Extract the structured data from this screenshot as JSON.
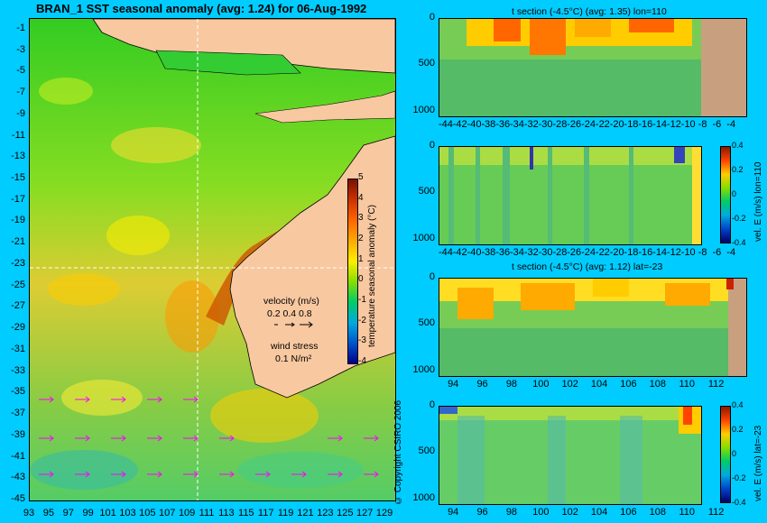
{
  "main_title": "BRAN_1  SST seasonal anomaly  (avg: 1.24) for 06-Aug-1992",
  "copyright": "© Copyright CSIRO 2006",
  "colors": {
    "background": "#00ccff",
    "land": "#f8c8a0",
    "arrow": "#ff00ff"
  },
  "map": {
    "velocity_label": "velocity (m/s)",
    "velocity_scale": "0.2 0.4 0.8",
    "wind_label": "wind stress",
    "wind_scale": "0.1 N/m²",
    "colorbar_label": "temperature seasonal anomaly (°C)"
  },
  "panels": {
    "t1_title": "t section (-4.5°C) (avg: 1.35) lon=110",
    "v1_label": "vel. E (m/s) lon=110",
    "t2_title": "t section (-4.5°C) (avg: 1.12) lat=-23",
    "v2_label": "vel. E (m/s) lat=-23"
  },
  "chart_data": [
    {
      "type": "heatmap",
      "title": "BRAN_1  SST seasonal anomaly  (avg: 1.24) for 06-Aug-1992",
      "x_ticks": [
        "93",
        "95",
        "97",
        "99",
        "101",
        "103",
        "105",
        "107",
        "109",
        "111",
        "113",
        "115",
        "117",
        "119",
        "121",
        "123",
        "125",
        "127",
        "129"
      ],
      "y_ticks": [
        "-1",
        "-3",
        "-5",
        "-7",
        "-9",
        "-11",
        "-13",
        "-15",
        "-17",
        "-19",
        "-21",
        "-23",
        "-25",
        "-27",
        "-29",
        "-31",
        "-33",
        "-35",
        "-37",
        "-39",
        "-41",
        "-43",
        "-45"
      ],
      "xlim": [
        93,
        130
      ],
      "ylim": [
        -45,
        0
      ],
      "colorbar": {
        "label": "temperature seasonal anomaly (°C)",
        "min": -4,
        "max": 5,
        "ticks": [
          "5",
          "4",
          "3",
          "2",
          "1",
          "0",
          "-1",
          "-2",
          "-3",
          "-4"
        ]
      },
      "crosshair": {
        "lon": 110,
        "lat": -23
      }
    },
    {
      "type": "heatmap",
      "title": "t section (-4.5°C) (avg: 1.35) lon=110",
      "x_ticks": [
        "-44",
        "-42",
        "-40",
        "-38",
        "-36",
        "-34",
        "-32",
        "-30",
        "-28",
        "-26",
        "-24",
        "-22",
        "-20",
        "-18",
        "-16",
        "-14",
        "-12",
        "-10",
        "-8",
        "-6",
        "-4"
      ],
      "y_ticks": [
        "0",
        "500",
        "1000"
      ],
      "xlim": [
        -45,
        -2
      ],
      "ylim": [
        1050,
        0
      ]
    },
    {
      "type": "heatmap",
      "title": "",
      "x_ticks": [
        "-44",
        "-42",
        "-40",
        "-38",
        "-36",
        "-34",
        "-32",
        "-30",
        "-28",
        "-26",
        "-24",
        "-22",
        "-20",
        "-18",
        "-16",
        "-14",
        "-12",
        "-10",
        "-8",
        "-6",
        "-4"
      ],
      "y_ticks": [
        "0",
        "500",
        "1000"
      ],
      "xlim": [
        -45,
        -2
      ],
      "ylim": [
        1050,
        0
      ],
      "colorbar": {
        "label": "vel. E (m/s) lon=110",
        "min": -0.4,
        "max": 0.4,
        "ticks": [
          "0.4",
          "0.2",
          "0",
          "-0.2",
          "-0.4"
        ]
      }
    },
    {
      "type": "heatmap",
      "title": "t section (-4.5°C) (avg: 1.12) lat=-23",
      "x_ticks": [
        "94",
        "96",
        "98",
        "100",
        "102",
        "104",
        "106",
        "108",
        "110",
        "112"
      ],
      "y_ticks": [
        "0",
        "500",
        "1000"
      ],
      "xlim": [
        93,
        114
      ],
      "ylim": [
        1050,
        0
      ]
    },
    {
      "type": "heatmap",
      "title": "",
      "x_ticks": [
        "94",
        "96",
        "98",
        "100",
        "102",
        "104",
        "106",
        "108",
        "110",
        "112"
      ],
      "y_ticks": [
        "0",
        "500",
        "1000"
      ],
      "xlim": [
        93,
        114
      ],
      "ylim": [
        1050,
        0
      ],
      "colorbar": {
        "label": "vel. E (m/s) lat=-23",
        "min": -0.4,
        "max": 0.4,
        "ticks": [
          "0.4",
          "0.2",
          "0",
          "-0.2",
          "-0.4"
        ]
      }
    }
  ]
}
